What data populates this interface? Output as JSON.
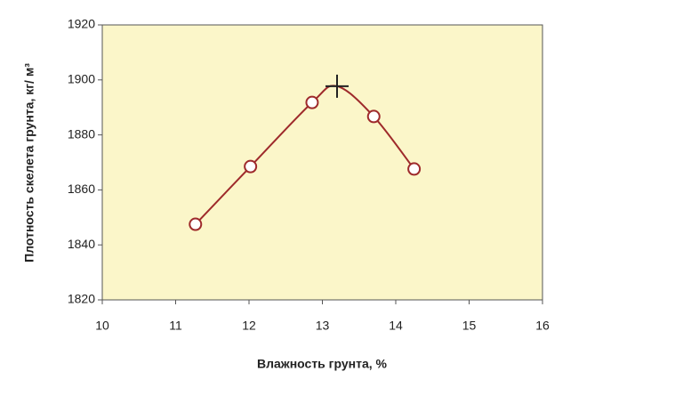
{
  "chart_data": {
    "type": "line",
    "x_label": "Влажность грунта, %",
    "y_label": "Плотность скелета грунта, кг/ м³",
    "x": [
      11.27,
      12.02,
      12.86,
      13.2,
      13.7,
      14.25
    ],
    "series": [
      {
        "color": "#9e2a2b",
        "values": [
          1847.5,
          1868.5,
          1891.8,
          1897.7,
          1886.7,
          1867.6
        ],
        "markers": [
          "circle",
          "circle",
          "circle",
          "plus",
          "circle",
          "circle"
        ]
      }
    ],
    "xlim": [
      10,
      16
    ],
    "xticks": [
      10,
      11,
      12,
      13,
      14,
      15,
      16
    ],
    "ylim": [
      1820,
      1920
    ],
    "yticks": [
      1820,
      1840,
      1860,
      1880,
      1900,
      1920
    ],
    "background": "#fbf6c9"
  }
}
